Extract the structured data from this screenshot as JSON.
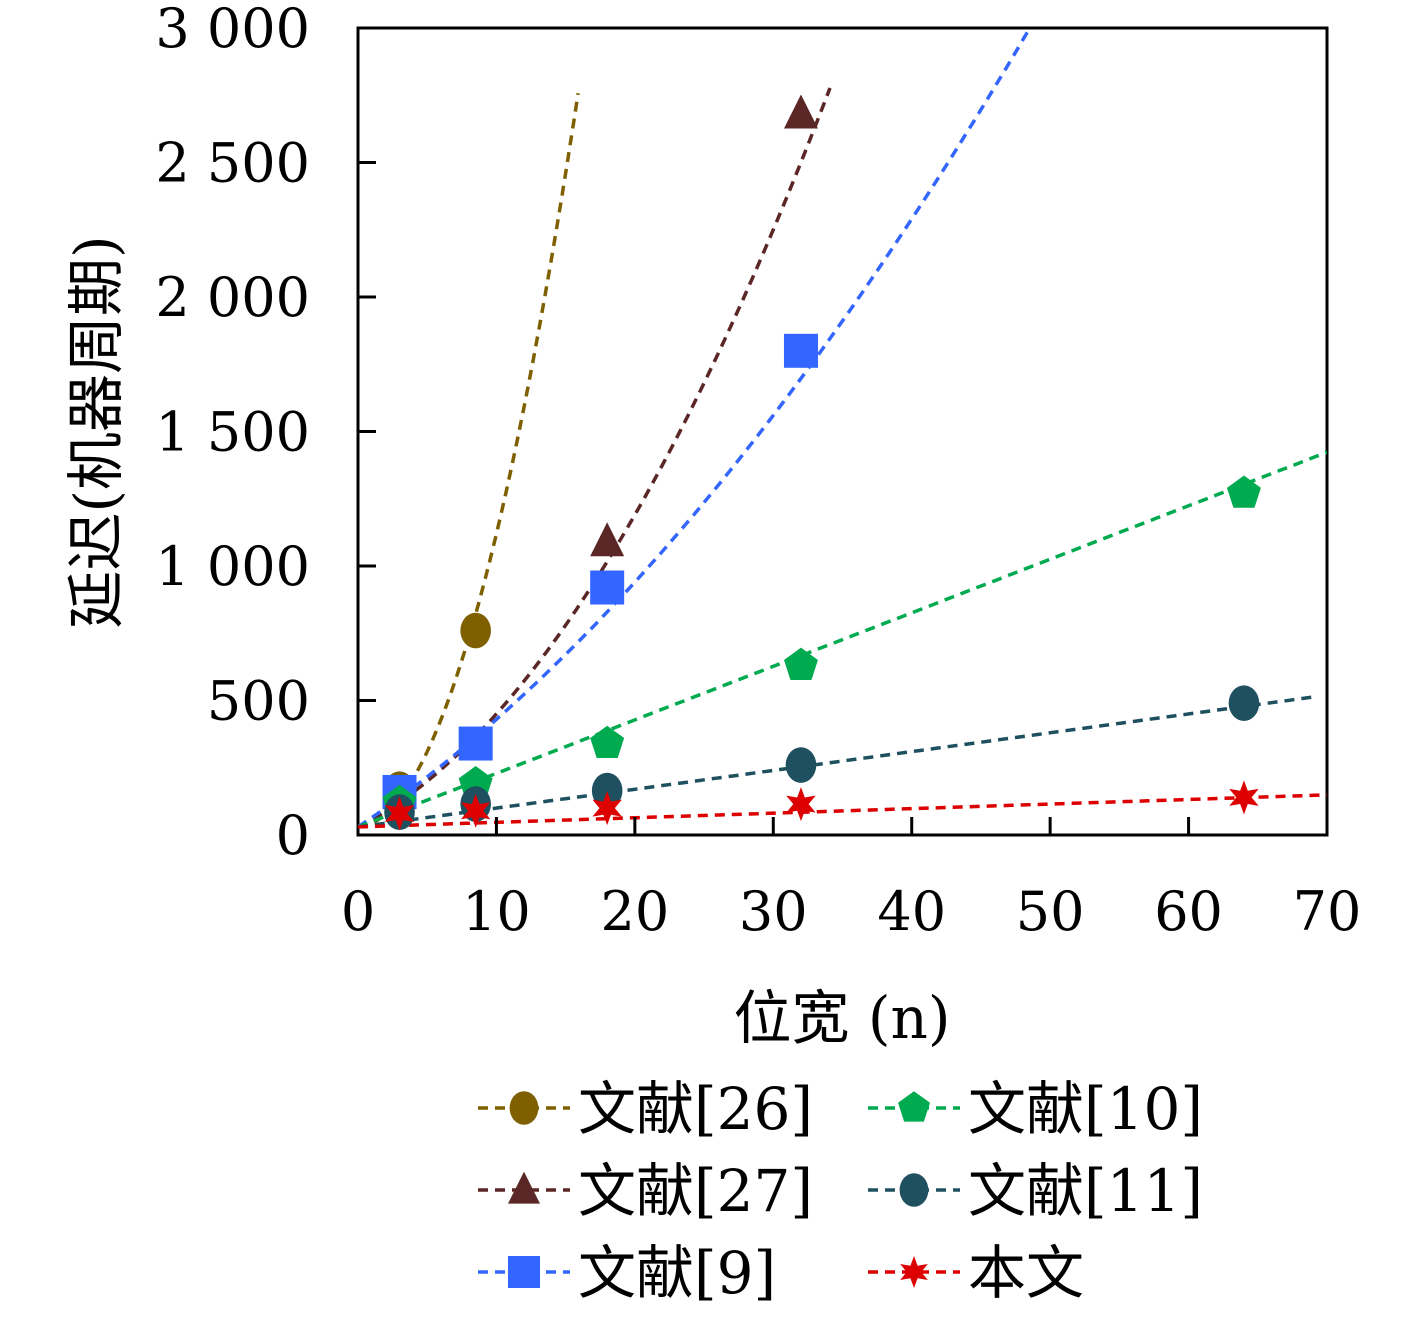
{
  "chart_data": {
    "type": "line",
    "title": "",
    "xlabel": "位宽 (n)",
    "ylabel": "延迟(机器周期)",
    "xlim": [
      0,
      70
    ],
    "ylim": [
      0,
      3000
    ],
    "xticks": [
      0,
      10,
      20,
      30,
      40,
      50,
      60,
      70
    ],
    "yticks": [
      0,
      500,
      1000,
      1500,
      2000,
      2500,
      3000
    ],
    "xtick_labels": [
      "0",
      "10",
      "20",
      "30",
      "40",
      "50",
      "60",
      "70"
    ],
    "ytick_labels": [
      "0",
      "500",
      "1 000",
      "1 500",
      "2 000",
      "2 500",
      "3 000"
    ],
    "grid": false,
    "legend_position": "bottom, below the x-axis title, two columns",
    "series": [
      {
        "name": "文献[26]",
        "color": "#7f6000",
        "marker": "ellipse",
        "x": [
          3,
          8.5
        ],
        "y": [
          170,
          760
        ],
        "trend": {
          "model": "quadratic",
          "coefficients": [
            30,
            3,
            10.6
          ],
          "x_range": [
            0,
            15.9
          ]
        }
      },
      {
        "name": "文献[27]",
        "color": "#5b2626",
        "marker": "triangle",
        "x": [
          3,
          18,
          32
        ],
        "y": [
          150,
          1090,
          2680
        ],
        "trend": {
          "model": "quadratic",
          "coefficients": [
            30,
            26,
            1.6
          ],
          "x_range": [
            0,
            34.1
          ]
        }
      },
      {
        "name": "文献[9]",
        "color": "#3366ff",
        "marker": "square",
        "x": [
          3,
          8.5,
          18,
          32
        ],
        "y": [
          160,
          340,
          920,
          1800
        ],
        "trend": {
          "model": "quadratic",
          "coefficients": [
            30,
            34.5,
            0.55
          ],
          "x_range": [
            0,
            48.7
          ]
        }
      },
      {
        "name": "文献[10]",
        "color": "#00aa4f",
        "marker": "pentagon",
        "x": [
          3,
          8.5,
          18,
          32,
          64
        ],
        "y": [
          120,
          190,
          340,
          630,
          1270
        ],
        "trend": {
          "model": "linear",
          "coefficients": [
            30,
            19.9
          ],
          "x_range": [
            0,
            70
          ]
        }
      },
      {
        "name": "文献[11]",
        "color": "#1e5060",
        "marker": "ellipse",
        "x": [
          3,
          8.5,
          18,
          32,
          64
        ],
        "y": [
          85,
          115,
          165,
          260,
          490
        ],
        "trend": {
          "model": "linear",
          "coefficients": [
            30,
            7
          ],
          "x_range": [
            0,
            69
          ]
        }
      },
      {
        "name": "本文",
        "color": "#dd0000",
        "marker": "star",
        "x": [
          3,
          8.5,
          18,
          32,
          64
        ],
        "y": [
          80,
          90,
          100,
          115,
          140
        ],
        "trend": {
          "model": "linear",
          "coefficients": [
            30,
            1.7
          ],
          "x_range": [
            0,
            70
          ]
        }
      }
    ]
  }
}
